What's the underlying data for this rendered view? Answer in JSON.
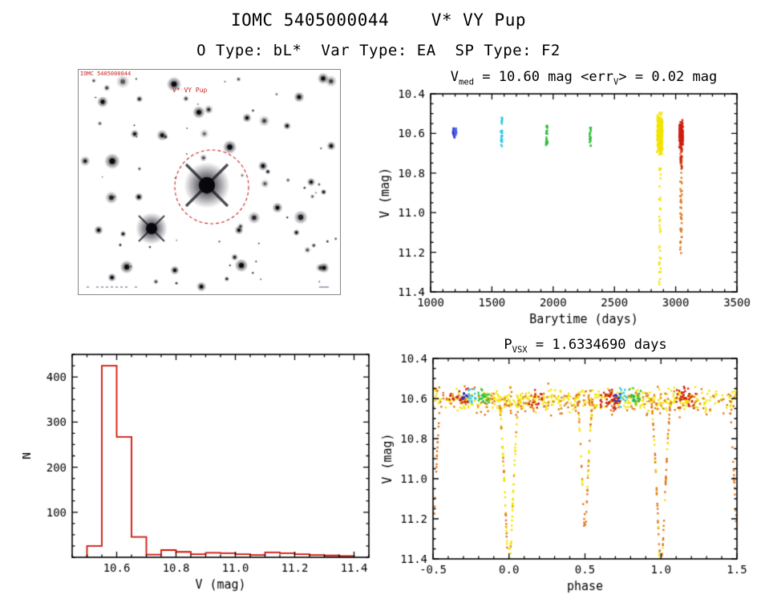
{
  "page": {
    "title": "IOMC 5405000044    V* VY Pup",
    "subtitle": "O Type: bL*  Var Type: EA  SP Type: F2"
  },
  "finder": {
    "corner_label": "IOMC 5405000044",
    "target_label": "V* VY Pup",
    "circle_color": "#cc2222"
  },
  "chart_data": [
    {
      "id": "lightcurve_time",
      "type": "scatter",
      "title_parts": [
        {
          "t": "V"
        },
        {
          "sub": "med"
        },
        {
          "t": " = 10.60 mag <err"
        },
        {
          "sub": "V"
        },
        {
          "t": "> = 0.02 mag"
        }
      ],
      "xlabel": "Barytime (days)",
      "ylabel": "V (mag)",
      "xlim": [
        1000,
        3500
      ],
      "ylim": [
        10.4,
        11.4
      ],
      "y_inverted": true,
      "xticks": [
        [
          1000,
          "1000"
        ],
        [
          1500,
          "1500"
        ],
        [
          2000,
          "2000"
        ],
        [
          2500,
          "2500"
        ],
        [
          3000,
          "3000"
        ],
        [
          3500,
          "3500"
        ]
      ],
      "yticks": [
        [
          10.4,
          "10.4"
        ],
        [
          10.6,
          "10.6"
        ],
        [
          10.8,
          "10.8"
        ],
        [
          11.0,
          "11.0"
        ],
        [
          11.2,
          "11.2"
        ],
        [
          11.4,
          "11.4"
        ]
      ],
      "xminor": 100,
      "yminor": 0.05,
      "clusters": [
        {
          "color": "#2a35c8",
          "x": [
            1181,
            1199
          ],
          "y": [
            10.565,
            10.625
          ],
          "n": 24,
          "dense": true
        },
        {
          "color": "#4a63e8",
          "x": [
            1196,
            1213
          ],
          "y": [
            10.555,
            10.62
          ],
          "n": 16,
          "dense": true
        },
        {
          "color": "#29c8e8",
          "x": [
            1573,
            1586
          ],
          "y": [
            10.52,
            10.67
          ],
          "n": 26,
          "dense": false
        },
        {
          "color": "#2fbf3a",
          "x": [
            1941,
            1954
          ],
          "y": [
            10.555,
            10.665
          ],
          "n": 26,
          "dense": false
        },
        {
          "color": "#2fbf3a",
          "x": [
            2297,
            2309
          ],
          "y": [
            10.57,
            10.665
          ],
          "n": 20,
          "dense": false
        },
        {
          "color": "#f2e400",
          "x": [
            2849,
            2893
          ],
          "y": [
            10.49,
            10.72
          ],
          "n": 280,
          "dense": true
        },
        {
          "color": "#f2e400",
          "x": [
            2864,
            2880
          ],
          "y": [
            10.76,
            11.42
          ],
          "n": 38,
          "dense": false
        },
        {
          "color": "#e0791c",
          "x": [
            3037,
            3051
          ],
          "y": [
            10.62,
            11.21
          ],
          "n": 60,
          "dense": false
        },
        {
          "color": "#cf1d10",
          "x": [
            3029,
            3059
          ],
          "y": [
            10.52,
            10.69
          ],
          "n": 150,
          "dense": true
        },
        {
          "color": "#cf1d10",
          "x": [
            3040,
            3052
          ],
          "y": [
            10.69,
            10.78
          ],
          "n": 12,
          "dense": false
        }
      ]
    },
    {
      "id": "histogram",
      "type": "bar",
      "xlabel": "V (mag)",
      "ylabel": "N",
      "xlim": [
        10.45,
        11.45
      ],
      "ylim": [
        0,
        450
      ],
      "y_inverted": false,
      "xticks": [
        [
          10.6,
          "10.6"
        ],
        [
          10.8,
          "10.8"
        ],
        [
          11.0,
          "11.0"
        ],
        [
          11.2,
          "11.2"
        ],
        [
          11.4,
          "11.4"
        ]
      ],
      "yticks": [
        [
          100,
          "100"
        ],
        [
          200,
          "200"
        ],
        [
          300,
          "300"
        ],
        [
          400,
          "400"
        ]
      ],
      "xminor": 0.05,
      "yminor": 25,
      "bin_width": 0.05,
      "color": "#cc1208",
      "bins": [
        {
          "x": 10.5,
          "n": 25
        },
        {
          "x": 10.55,
          "n": 425
        },
        {
          "x": 10.6,
          "n": 267
        },
        {
          "x": 10.65,
          "n": 45
        },
        {
          "x": 10.7,
          "n": 6
        },
        {
          "x": 10.75,
          "n": 16
        },
        {
          "x": 10.8,
          "n": 12
        },
        {
          "x": 10.85,
          "n": 7
        },
        {
          "x": 10.9,
          "n": 10
        },
        {
          "x": 10.95,
          "n": 9
        },
        {
          "x": 11.0,
          "n": 7
        },
        {
          "x": 11.05,
          "n": 5
        },
        {
          "x": 11.1,
          "n": 11
        },
        {
          "x": 11.15,
          "n": 9
        },
        {
          "x": 11.2,
          "n": 7
        },
        {
          "x": 11.25,
          "n": 5
        },
        {
          "x": 11.3,
          "n": 4
        },
        {
          "x": 11.35,
          "n": 3
        }
      ]
    },
    {
      "id": "lightcurve_phase",
      "type": "scatter",
      "title_parts": [
        {
          "t": "P"
        },
        {
          "sub": "VSX"
        },
        {
          "t": " = 1.6334690 days"
        }
      ],
      "xlabel": "phase",
      "ylabel": "V (mag)",
      "xlim": [
        -0.5,
        1.5
      ],
      "ylim": [
        10.4,
        11.4
      ],
      "y_inverted": true,
      "xticks": [
        [
          -0.5,
          "-0.5"
        ],
        [
          0.0,
          "0.0"
        ],
        [
          0.5,
          "0.5"
        ],
        [
          1.0,
          "1.0"
        ],
        [
          1.5,
          "1.5"
        ]
      ],
      "yticks": [
        [
          10.4,
          "10.4"
        ],
        [
          10.6,
          "10.6"
        ],
        [
          10.8,
          "10.8"
        ],
        [
          11.0,
          "11.0"
        ],
        [
          11.2,
          "11.2"
        ],
        [
          11.4,
          "11.4"
        ]
      ],
      "xminor": 0.1,
      "yminor": 0.05,
      "bands": [
        {
          "color": "#f2e400",
          "n": 430,
          "y_center": 10.605,
          "y_sd": 0.032
        },
        {
          "color": "#e0791c",
          "n": 230,
          "y_center": 10.615,
          "y_sd": 0.042
        }
      ],
      "phase_clusters": [
        {
          "color": "#cf1d10",
          "range": [
            0.6,
            0.73
          ],
          "n": 45,
          "y_center": 10.6,
          "y_sd": 0.028
        },
        {
          "color": "#cf1d10",
          "range": [
            -0.4,
            -0.27
          ],
          "n": 22,
          "y_center": 10.6,
          "y_sd": 0.028
        },
        {
          "color": "#cf1d10",
          "range": [
            1.1,
            1.23
          ],
          "n": 40,
          "y_center": 10.6,
          "y_sd": 0.028
        },
        {
          "color": "#cf1d10",
          "range": [
            0.13,
            0.22
          ],
          "n": 16,
          "y_center": 10.6,
          "y_sd": 0.028
        },
        {
          "color": "#2fbf3a",
          "range": [
            -0.21,
            -0.13
          ],
          "n": 26,
          "y_center": 10.595,
          "y_sd": 0.025
        },
        {
          "color": "#2fbf3a",
          "range": [
            0.79,
            0.87
          ],
          "n": 26,
          "y_center": 10.595,
          "y_sd": 0.025
        },
        {
          "color": "#29c8e8",
          "range": [
            -0.27,
            -0.22
          ],
          "n": 16,
          "y_center": 10.59,
          "y_sd": 0.025
        },
        {
          "color": "#29c8e8",
          "range": [
            0.73,
            0.78
          ],
          "n": 16,
          "y_center": 10.59,
          "y_sd": 0.025
        },
        {
          "color": "#2a35c8",
          "range": [
            -0.31,
            -0.27
          ],
          "n": 10,
          "y_center": 10.595,
          "y_sd": 0.02
        },
        {
          "color": "#2a35c8",
          "range": [
            0.69,
            0.73
          ],
          "n": 10,
          "y_center": 10.595,
          "y_sd": 0.02
        }
      ],
      "eclipses": [
        {
          "center": 0.0,
          "half_width": 0.065,
          "depth": 0.82,
          "colors": [
            "#f2e400",
            "#f2e400",
            "#e0791c"
          ],
          "n": 95
        },
        {
          "center": 1.0,
          "half_width": 0.065,
          "depth": 0.82,
          "colors": [
            "#e0791c",
            "#e0791c",
            "#f2e400"
          ],
          "n": 95
        },
        {
          "center": 0.5,
          "half_width": 0.05,
          "depth": 0.62,
          "colors": [
            "#e0791c",
            "#f2e400"
          ],
          "n": 60
        },
        {
          "center": -0.5,
          "half_width": 0.05,
          "depth": 0.62,
          "colors": [
            "#e0791c"
          ],
          "n": 45
        },
        {
          "center": 1.5,
          "half_width": 0.05,
          "depth": 0.62,
          "colors": [
            "#e0791c"
          ],
          "n": 30
        }
      ]
    }
  ]
}
